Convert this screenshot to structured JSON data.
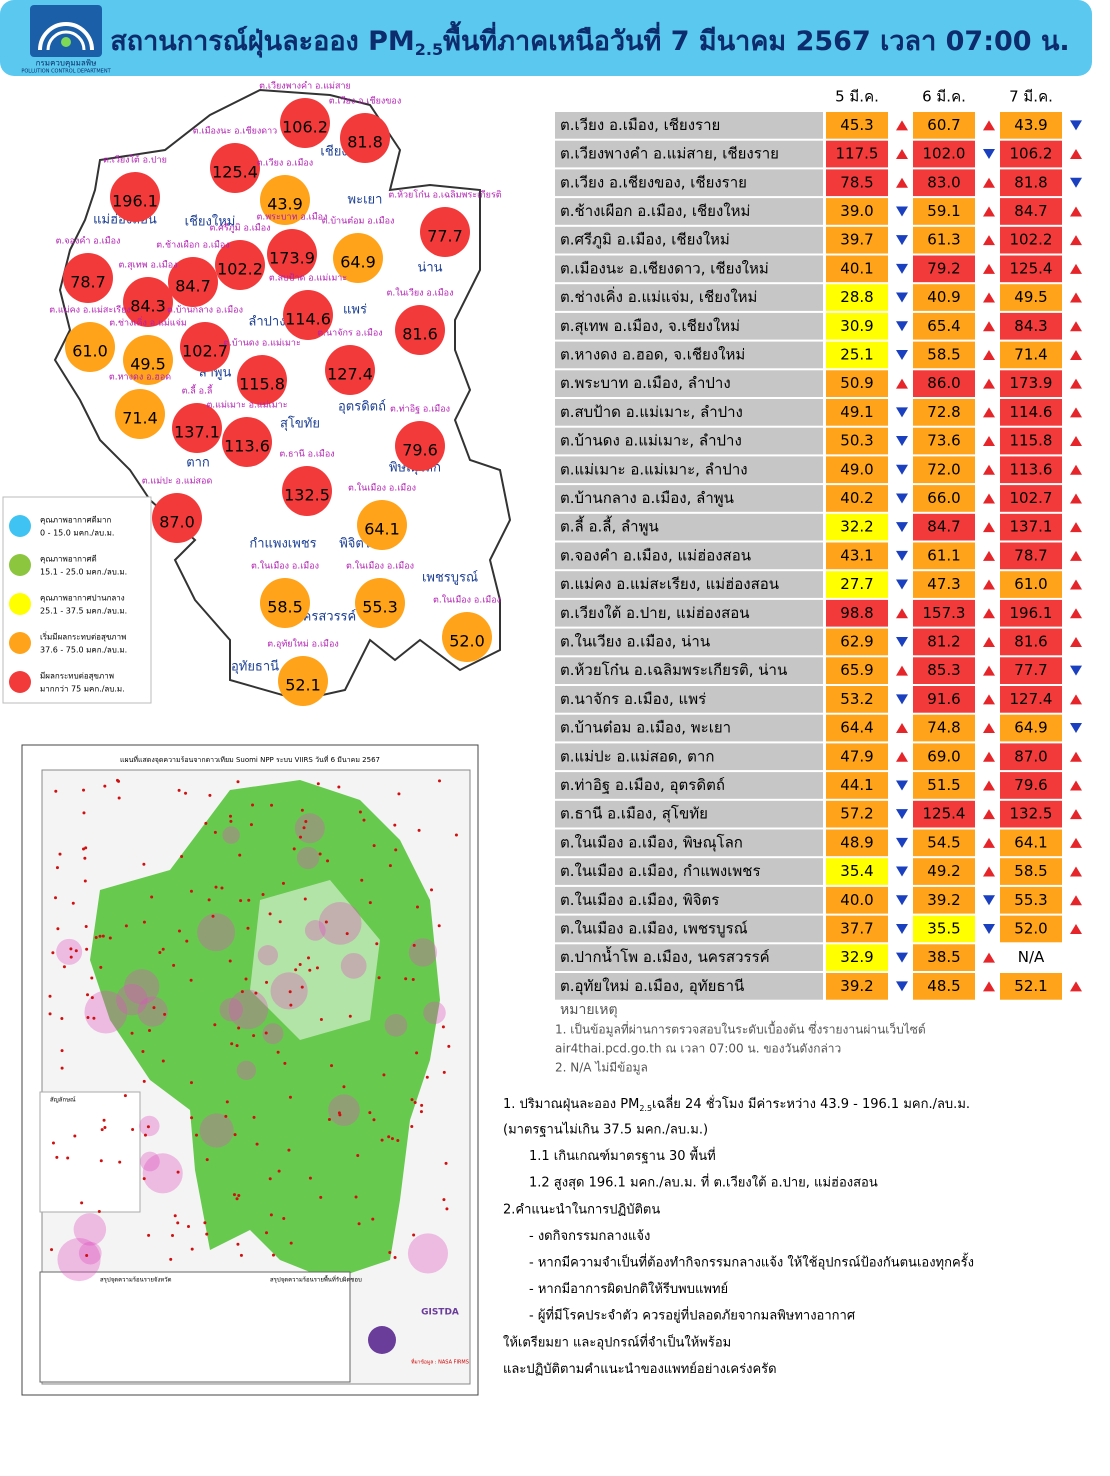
{
  "header": {
    "title_prefix": "สถานการณ์ฝุ่นละออง PM",
    "title_sub": "2.5",
    "title_suffix": "พื้นที่ภาคเหนือวันที่ 7 มีนาคม 2567 เวลา 07:00 น.",
    "logo_name": "กรมควบคุมมลพิษ",
    "logo_en": "POLLUTION CONTROL DEPARTMENT"
  },
  "table": {
    "dates": [
      "5 มี.ค.",
      "6 มี.ค.",
      "7 มี.ค."
    ],
    "rows": [
      {
        "name": "ต.เวียง อ.เมือง, เชียงราย",
        "values": [
          "45.3",
          "60.7",
          "43.9"
        ],
        "trends": [
          "up",
          "up",
          "down"
        ]
      },
      {
        "name": "ต.เวียงพางคำ อ.แม่สาย, เชียงราย",
        "values": [
          "117.5",
          "102.0",
          "106.2"
        ],
        "trends": [
          "up",
          "down",
          "up"
        ]
      },
      {
        "name": "ต.เวียง อ.เชียงของ, เชียงราย",
        "values": [
          "78.5",
          "83.0",
          "81.8"
        ],
        "trends": [
          "up",
          "up",
          "down"
        ]
      },
      {
        "name": "ต.ช้างเผือก อ.เมือง, เชียงใหม่",
        "values": [
          "39.0",
          "59.1",
          "84.7"
        ],
        "trends": [
          "down",
          "up",
          "up"
        ]
      },
      {
        "name": "ต.ศรีภูมิ อ.เมือง, เชียงใหม่",
        "values": [
          "39.7",
          "61.3",
          "102.2"
        ],
        "trends": [
          "down",
          "up",
          "up"
        ]
      },
      {
        "name": "ต.เมืองนะ อ.เชียงดาว, เชียงใหม่",
        "values": [
          "40.1",
          "79.2",
          "125.4"
        ],
        "trends": [
          "down",
          "up",
          "up"
        ]
      },
      {
        "name": "ต.ช่างเคิ่ง อ.แม่แจ่ม, เชียงใหม่",
        "values": [
          "28.8",
          "40.9",
          "49.5"
        ],
        "trends": [
          "down",
          "up",
          "up"
        ]
      },
      {
        "name": "ต.สุเทพ  อ.เมือง, จ.เชียงใหม่",
        "values": [
          "30.9",
          "65.4",
          "84.3"
        ],
        "trends": [
          "down",
          "up",
          "up"
        ]
      },
      {
        "name": "ต.หางดง อ.ฮอด, จ.เชียงใหม่",
        "values": [
          "25.1",
          "58.5",
          "71.4"
        ],
        "trends": [
          "down",
          "up",
          "up"
        ]
      },
      {
        "name": "ต.พระบาท อ.เมือง, ลำปาง",
        "values": [
          "50.9",
          "86.0",
          "173.9"
        ],
        "trends": [
          "up",
          "up",
          "up"
        ]
      },
      {
        "name": "ต.สบป้าด อ.แม่เมาะ, ลำปาง",
        "values": [
          "49.1",
          "72.8",
          "114.6"
        ],
        "trends": [
          "down",
          "up",
          "up"
        ]
      },
      {
        "name": "ต.บ้านดง อ.แม่เมาะ, ลำปาง",
        "values": [
          "50.3",
          "73.6",
          "115.8"
        ],
        "trends": [
          "down",
          "up",
          "up"
        ]
      },
      {
        "name": "ต.แม่เมาะ อ.แม่เมาะ, ลำปาง",
        "values": [
          "49.0",
          "72.0",
          "113.6"
        ],
        "trends": [
          "down",
          "up",
          "up"
        ]
      },
      {
        "name": "ต.บ้านกลาง อ.เมือง, ลำพูน",
        "values": [
          "40.2",
          "66.0",
          "102.7"
        ],
        "trends": [
          "down",
          "up",
          "up"
        ]
      },
      {
        "name": "ต.ลี้ อ.ลี้, ลำพูน",
        "values": [
          "32.2",
          "84.7",
          "137.1"
        ],
        "trends": [
          "down",
          "up",
          "up"
        ]
      },
      {
        "name": "ต.จองคำ อ.เมือง, แม่ฮ่องสอน",
        "values": [
          "43.1",
          "61.1",
          "78.7"
        ],
        "trends": [
          "down",
          "up",
          "up"
        ]
      },
      {
        "name": "ต.แม่คง อ.แม่สะเรียง, แม่ฮ่องสอน",
        "values": [
          "27.7",
          "47.3",
          "61.0"
        ],
        "trends": [
          "down",
          "up",
          "up"
        ]
      },
      {
        "name": "ต.เวียงใต้ อ.ปาย, แม่ฮ่องสอน",
        "values": [
          "98.8",
          "157.3",
          "196.1"
        ],
        "trends": [
          "up",
          "up",
          "up"
        ]
      },
      {
        "name": "ต.ในเวียง อ.เมือง, น่าน",
        "values": [
          "62.9",
          "81.2",
          "81.6"
        ],
        "trends": [
          "down",
          "up",
          "up"
        ]
      },
      {
        "name": "ต.ห้วยโก๋น อ.เฉลิมพระเกียรติ, น่าน",
        "values": [
          "65.9",
          "85.3",
          "77.7"
        ],
        "trends": [
          "up",
          "up",
          "down"
        ]
      },
      {
        "name": "ต.นาจักร อ.เมือง, แพร่",
        "values": [
          "53.2",
          "91.6",
          "127.4"
        ],
        "trends": [
          "down",
          "up",
          "up"
        ]
      },
      {
        "name": "ต.บ้านต๋อม อ.เมือง, พะเยา",
        "values": [
          "64.4",
          "74.8",
          "64.9"
        ],
        "trends": [
          "up",
          "up",
          "down"
        ]
      },
      {
        "name": "ต.แม่ปะ อ.แม่สอด, ตาก",
        "values": [
          "47.9",
          "69.0",
          "87.0"
        ],
        "trends": [
          "up",
          "up",
          "up"
        ]
      },
      {
        "name": "ต.ท่าอิฐ อ.เมือง, อุตรดิตถ์",
        "values": [
          "44.1",
          "51.5",
          "79.6"
        ],
        "trends": [
          "down",
          "up",
          "up"
        ]
      },
      {
        "name": "ต.ธานี อ.เมือง, สุโขทัย",
        "values": [
          "57.2",
          "125.4",
          "132.5"
        ],
        "trends": [
          "down",
          "up",
          "up"
        ]
      },
      {
        "name": "ต.ในเมือง อ.เมือง, พิษณุโลก",
        "values": [
          "48.9",
          "54.5",
          "64.1"
        ],
        "trends": [
          "down",
          "up",
          "up"
        ]
      },
      {
        "name": "ต.ในเมือง อ.เมือง, กำแพงเพชร",
        "values": [
          "35.4",
          "49.2",
          "58.5"
        ],
        "trends": [
          "down",
          "up",
          "up"
        ]
      },
      {
        "name": "ต.ในเมือง อ.เมือง, พิจิตร",
        "values": [
          "40.0",
          "39.2",
          "55.3"
        ],
        "trends": [
          "down",
          "down",
          "up"
        ]
      },
      {
        "name": "ต.ในเมือง อ.เมือง, เพชรบูรณ์",
        "values": [
          "37.7",
          "35.5",
          "52.0"
        ],
        "trends": [
          "down",
          "down",
          "up"
        ]
      },
      {
        "name": "ต.ปากน้ำโพ อ.เมือง, นครสวรรค์",
        "values": [
          "32.9",
          "38.5",
          "N/A"
        ],
        "trends": [
          "down",
          "up",
          null
        ]
      },
      {
        "name": "ต.อุทัยใหม่ อ.เมือง, อุทัยธานี",
        "values": [
          "39.2",
          "48.5",
          "52.1"
        ],
        "trends": [
          "down",
          "up",
          "up"
        ]
      }
    ]
  },
  "notes": {
    "title": "หมายเหตุ",
    "lines": [
      "1. เป็นข้อมูลที่ผ่านการตรวจสอบในระดับเบื้องต้น  ซึ่งรายงานผ่านเว็บไซต์",
      "air4thai.pcd.go.th  ณ  เวลา 07:00  น.  ของวันดังกล่าว",
      "2.  N/A  ไม่มีข้อมูล"
    ]
  },
  "legend": {
    "items": [
      {
        "label": "คุณภาพอากาศดีมาก",
        "range": "0 - 15.0 มคก./ลบ.ม.",
        "color": "#3fc3f2"
      },
      {
        "label": "คุณภาพอากาศดี",
        "range": "15.1 - 25.0 มคก./ลบ.ม.",
        "color": "#8cc63f"
      },
      {
        "label": "คุณภาพอากาศปานกลาง",
        "range": "25.1 - 37.5 มคก./ลบ.ม.",
        "color": "#ffff00"
      },
      {
        "label": "เริ่มมีผลกระทบต่อสุขภาพ",
        "range": "37.6 - 75.0 มคก./ลบ.ม.",
        "color": "#ffa31a"
      },
      {
        "label": "มีผลกระทบต่อสุขภาพ",
        "range": "มากกว่า 75 มคก./ลบ.ม.",
        "color": "#f23a3a"
      }
    ]
  },
  "map": {
    "provinces": [
      "เชียงราย",
      "พะเยา",
      "แม่ฮ่องสอน",
      "เชียงใหม่",
      "น่าน",
      "แพร่",
      "ลำปาง",
      "ลำพูน",
      "อุตรดิตถ์",
      "สุโขทัย",
      "ตาก",
      "พิษณุโลก",
      "กำแพงเพชร",
      "พิจิตร",
      "เพชรบูรณ์",
      "นครสวรรค์",
      "อุทัยธานี"
    ],
    "stations": [
      {
        "label": "ต.เวียงพางคำ อ.แม่สาย",
        "value": "106.2"
      },
      {
        "label": "ต.เวียง อ.เชียงของ",
        "value": "81.8"
      },
      {
        "label": "ต.เมืองนะ อ.เชียงดาว",
        "value": "125.4"
      },
      {
        "label": "ต.เวียงใต้ อ.ปาย",
        "value": "196.1"
      },
      {
        "label": "ต.เวียง อ.เมือง",
        "value": "43.9"
      },
      {
        "label": "ต.ห้วยโก๋น อ.เฉลิมพระเกียรติ",
        "value": "77.7"
      },
      {
        "label": "ต.พระบาท อ.เมือง",
        "value": "173.9"
      },
      {
        "label": "ต.ศรีภูมิ อ.เมือง",
        "value": "102.2"
      },
      {
        "label": "ต.บ้านต๋อม อ.เมือง",
        "value": "64.9"
      },
      {
        "label": "ต.ช้างเผือก อ.เมือง",
        "value": "84.7"
      },
      {
        "label": "ต.จองคำ อ.เมือง",
        "value": "78.7"
      },
      {
        "label": "ต.สุเทพ อ.เมือง",
        "value": "84.3"
      },
      {
        "label": "ต.สบป้าด อ.แม่เมาะ",
        "value": "114.6"
      },
      {
        "label": "ต.ในเวียง อ.เมือง",
        "value": "81.6"
      },
      {
        "label": "ต.แม่คง อ.แม่สะเรียง",
        "value": "61.0"
      },
      {
        "label": "ต.ช่างเคิ่ง อ.แม่แจ่ม",
        "value": "49.5"
      },
      {
        "label": "ต.บ้านกลาง อ.เมือง",
        "value": "102.7"
      },
      {
        "label": "ต.บ้านดง อ.แม่เมาะ",
        "value": "115.8"
      },
      {
        "label": "ต.นาจักร อ.เมือง",
        "value": "127.4"
      },
      {
        "label": "ต.หางดง อ.ฮอด",
        "value": "71.4"
      },
      {
        "label": "ต.ลี้ อ.ลี้",
        "value": "137.1"
      },
      {
        "label": "ต.แม่เมาะ อ.แม่เมาะ",
        "value": "113.6"
      },
      {
        "label": "ต.ท่าอิฐ อ.เมือง",
        "value": "79.6"
      },
      {
        "label": "ต.ธานี อ.เมือง",
        "value": "132.5"
      },
      {
        "label": "ต.แม่ปะ อ.แม่สอด",
        "value": "87.0"
      },
      {
        "label": "ต.ในเมือง อ.เมือง",
        "value": "64.1"
      },
      {
        "label": "ต.ในเมือง อ.เมือง",
        "value": "58.5"
      },
      {
        "label": "ต.ในเมือง อ.เมือง",
        "value": "55.3"
      },
      {
        "label": "ต.ในเมือง อ.เมือง",
        "value": "52.0"
      },
      {
        "label": "ต.อุทัยใหม่ อ.เมือง",
        "value": "52.1"
      }
    ]
  },
  "satellite": {
    "title": "แผนที่แสดงจุดความร้อนจากดาวเทียม Suomi NPP ระบบ VIIRS  วันที่ 6 มีนาคม 2567",
    "legend_title": "สัญลักษณ์",
    "summary_left": "สรุปจุดความร้อนรายจังหวัด",
    "summary_right": "สรุปจุดความร้อนรายพื้นที่รับผิดชอบ",
    "agency": "GISTDA",
    "source": "ที่มาข้อมูล : NASA FIRMS"
  },
  "summary": {
    "line1": {
      "prefix": "1. ปริมาณฝุ่นละออง PM",
      "sub": "2.5",
      "suffix": "เฉลี่ย 24 ชั่วโมง มีค่าระหว่าง 43.9 - 196.1 มคก./ลบ.ม."
    },
    "lines": [
      "(มาตรฐานไม่เกิน 37.5 มคก./ลบ.ม.)",
      "1.1 เกินเกณฑ์มาตรฐาน 30 พื้นที่",
      "1.2 สูงสุด 196.1 มคก./ลบ.ม. ที่ ต.เวียงใต้  อ.ปาย, แม่ฮ่องสอน",
      "2.คำแนะนำในการปฏิบัติตน",
      "-  งดกิจกรรมกลางแจ้ง",
      "-  หากมีความจำเป็นที่ต้องทำกิจกรรมกลางแจ้ง ให้ใช้อุปกรณ์ป้องกันตนเองทุกครั้ง",
      "-  หากมีอาการผิดปกติให้รีบพบแพทย์",
      "-  ผู้ที่มีโรคประจำตัว ควรอยู่ที่ปลอดภัยจากมลพิษทางอากาศ",
      "ให้เตรียมยา  และอุปกรณ์ที่จำเป็นให้พร้อม",
      "และปฏิบัติตามคำแนะนำของแพทย์อย่างเคร่งครัด"
    ]
  }
}
